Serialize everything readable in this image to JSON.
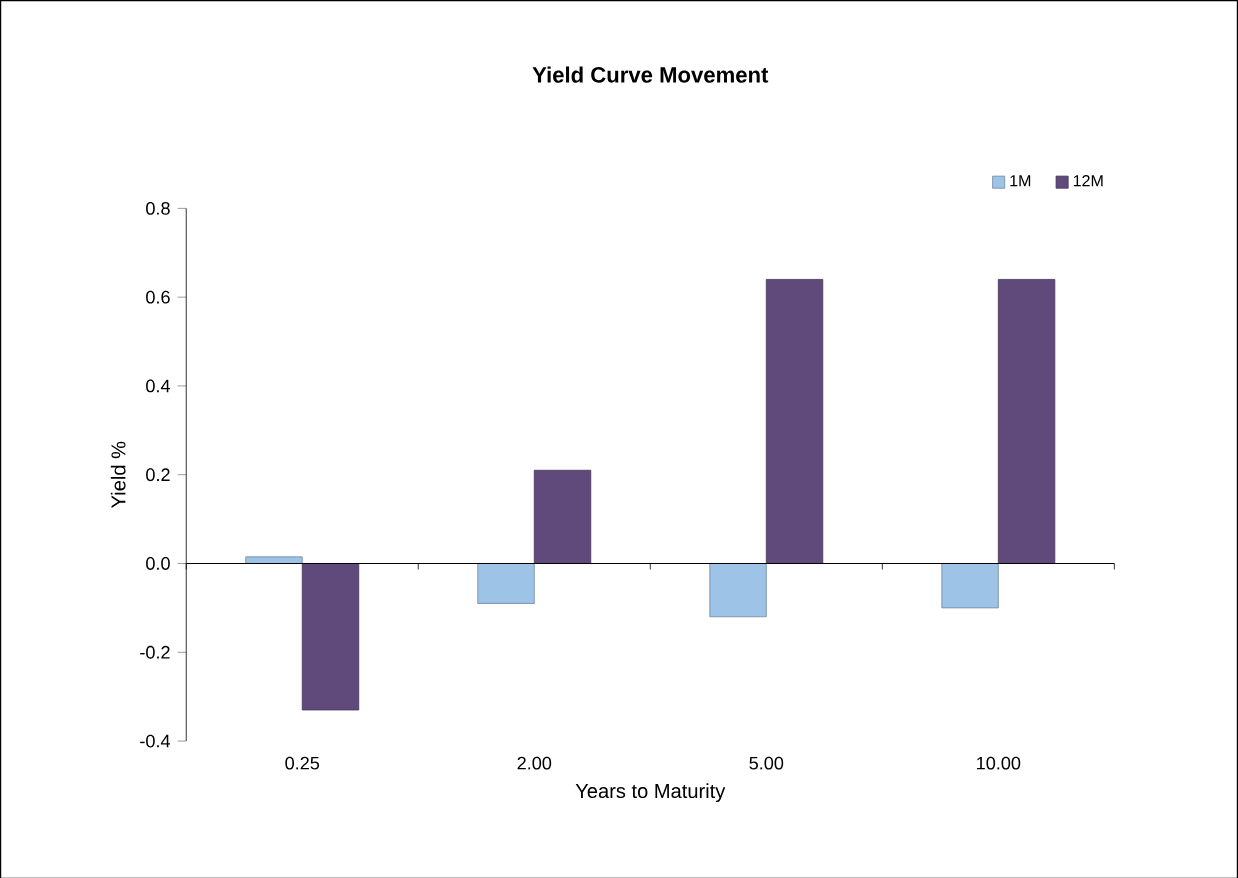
{
  "chart_data": {
    "type": "bar",
    "title": "Yield Curve Movement",
    "xlabel": "Years to Maturity",
    "ylabel": "Yield %",
    "categories": [
      "0.25",
      "2.00",
      "5.00",
      "10.00"
    ],
    "series": [
      {
        "name": "1M",
        "color": "#9dc3e6",
        "values": [
          0.015,
          -0.09,
          -0.12,
          -0.1
        ]
      },
      {
        "name": "12M",
        "color": "#604a7b",
        "values": [
          -0.33,
          0.21,
          0.64,
          0.64
        ]
      }
    ],
    "ylim": [
      -0.4,
      0.8
    ],
    "yticks": [
      {
        "value": -0.4,
        "label": "-0.4"
      },
      {
        "value": -0.2,
        "label": "-0.2"
      },
      {
        "value": 0,
        "label": "0.0"
      },
      {
        "value": 0.2,
        "label": "0.2"
      },
      {
        "value": 0.4,
        "label": "0.4"
      },
      {
        "value": 0.6,
        "label": "0.6"
      },
      {
        "value": 0.8,
        "label": "0.8"
      }
    ],
    "legend": "top right"
  }
}
